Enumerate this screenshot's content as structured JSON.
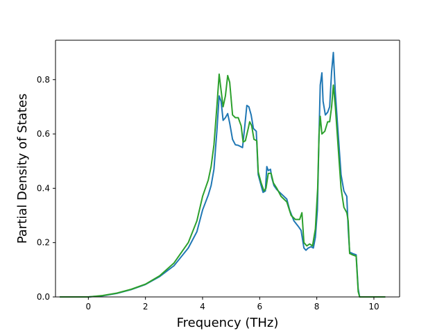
{
  "chart_data": {
    "type": "line",
    "title": "",
    "xlabel": "Frequency (THz)",
    "ylabel": "Partial Density of States",
    "xlim": [
      -1.15,
      10.9
    ],
    "ylim": [
      0.0,
      0.945
    ],
    "xticks": [
      0,
      2,
      4,
      6,
      8,
      10
    ],
    "yticks": [
      0.0,
      0.2,
      0.4,
      0.6,
      0.8
    ],
    "ytick_labels": [
      "0.0",
      "0.2",
      "0.4",
      "0.6",
      "0.8"
    ],
    "grid": false,
    "legend": "none",
    "series": [
      {
        "color": "#1f77b4",
        "points": [
          [
            -1.0,
            0.0
          ],
          [
            0.0,
            0.0
          ],
          [
            0.5,
            0.004
          ],
          [
            1.0,
            0.013
          ],
          [
            1.5,
            0.027
          ],
          [
            2.0,
            0.046
          ],
          [
            2.5,
            0.075
          ],
          [
            3.0,
            0.115
          ],
          [
            3.5,
            0.18
          ],
          [
            3.8,
            0.24
          ],
          [
            4.0,
            0.32
          ],
          [
            4.2,
            0.375
          ],
          [
            4.3,
            0.41
          ],
          [
            4.4,
            0.47
          ],
          [
            4.5,
            0.61
          ],
          [
            4.58,
            0.74
          ],
          [
            4.65,
            0.72
          ],
          [
            4.72,
            0.65
          ],
          [
            4.8,
            0.66
          ],
          [
            4.88,
            0.675
          ],
          [
            4.95,
            0.64
          ],
          [
            5.05,
            0.58
          ],
          [
            5.15,
            0.56
          ],
          [
            5.25,
            0.558
          ],
          [
            5.4,
            0.55
          ],
          [
            5.48,
            0.63
          ],
          [
            5.55,
            0.705
          ],
          [
            5.62,
            0.7
          ],
          [
            5.7,
            0.67
          ],
          [
            5.78,
            0.62
          ],
          [
            5.88,
            0.61
          ],
          [
            5.95,
            0.45
          ],
          [
            6.05,
            0.41
          ],
          [
            6.12,
            0.385
          ],
          [
            6.2,
            0.39
          ],
          [
            6.25,
            0.48
          ],
          [
            6.3,
            0.465
          ],
          [
            6.38,
            0.47
          ],
          [
            6.42,
            0.44
          ],
          [
            6.5,
            0.41
          ],
          [
            6.6,
            0.395
          ],
          [
            6.75,
            0.38
          ],
          [
            6.95,
            0.36
          ],
          [
            7.05,
            0.32
          ],
          [
            7.2,
            0.28
          ],
          [
            7.35,
            0.26
          ],
          [
            7.45,
            0.245
          ],
          [
            7.55,
            0.18
          ],
          [
            7.62,
            0.172
          ],
          [
            7.7,
            0.18
          ],
          [
            7.8,
            0.185
          ],
          [
            7.88,
            0.18
          ],
          [
            7.95,
            0.22
          ],
          [
            8.02,
            0.32
          ],
          [
            8.08,
            0.6
          ],
          [
            8.12,
            0.78
          ],
          [
            8.18,
            0.825
          ],
          [
            8.22,
            0.72
          ],
          [
            8.3,
            0.67
          ],
          [
            8.38,
            0.68
          ],
          [
            8.45,
            0.7
          ],
          [
            8.52,
            0.83
          ],
          [
            8.58,
            0.9
          ],
          [
            8.65,
            0.75
          ],
          [
            8.75,
            0.6
          ],
          [
            8.85,
            0.45
          ],
          [
            8.95,
            0.39
          ],
          [
            9.05,
            0.37
          ],
          [
            9.1,
            0.25
          ],
          [
            9.15,
            0.165
          ],
          [
            9.25,
            0.16
          ],
          [
            9.38,
            0.155
          ],
          [
            9.45,
            0.03
          ],
          [
            9.5,
            0.0
          ],
          [
            10.4,
            0.0
          ]
        ]
      },
      {
        "color": "#2ca02c",
        "points": [
          [
            -1.0,
            0.0
          ],
          [
            0.0,
            0.0
          ],
          [
            0.5,
            0.005
          ],
          [
            1.0,
            0.014
          ],
          [
            1.5,
            0.028
          ],
          [
            2.0,
            0.047
          ],
          [
            2.5,
            0.078
          ],
          [
            3.0,
            0.125
          ],
          [
            3.5,
            0.2
          ],
          [
            3.8,
            0.28
          ],
          [
            4.0,
            0.37
          ],
          [
            4.2,
            0.43
          ],
          [
            4.3,
            0.48
          ],
          [
            4.4,
            0.56
          ],
          [
            4.5,
            0.7
          ],
          [
            4.58,
            0.82
          ],
          [
            4.65,
            0.76
          ],
          [
            4.72,
            0.7
          ],
          [
            4.8,
            0.74
          ],
          [
            4.88,
            0.815
          ],
          [
            4.95,
            0.79
          ],
          [
            5.05,
            0.67
          ],
          [
            5.15,
            0.66
          ],
          [
            5.25,
            0.66
          ],
          [
            5.35,
            0.63
          ],
          [
            5.42,
            0.57
          ],
          [
            5.5,
            0.575
          ],
          [
            5.6,
            0.62
          ],
          [
            5.65,
            0.645
          ],
          [
            5.72,
            0.63
          ],
          [
            5.8,
            0.58
          ],
          [
            5.9,
            0.575
          ],
          [
            5.95,
            0.46
          ],
          [
            6.05,
            0.42
          ],
          [
            6.15,
            0.39
          ],
          [
            6.22,
            0.4
          ],
          [
            6.3,
            0.455
          ],
          [
            6.4,
            0.455
          ],
          [
            6.48,
            0.42
          ],
          [
            6.6,
            0.4
          ],
          [
            6.75,
            0.37
          ],
          [
            6.95,
            0.35
          ],
          [
            7.1,
            0.3
          ],
          [
            7.25,
            0.285
          ],
          [
            7.4,
            0.285
          ],
          [
            7.48,
            0.31
          ],
          [
            7.55,
            0.2
          ],
          [
            7.65,
            0.188
          ],
          [
            7.75,
            0.195
          ],
          [
            7.85,
            0.188
          ],
          [
            7.95,
            0.25
          ],
          [
            8.03,
            0.4
          ],
          [
            8.08,
            0.6
          ],
          [
            8.12,
            0.665
          ],
          [
            8.18,
            0.6
          ],
          [
            8.28,
            0.61
          ],
          [
            8.38,
            0.645
          ],
          [
            8.45,
            0.645
          ],
          [
            8.52,
            0.7
          ],
          [
            8.58,
            0.78
          ],
          [
            8.65,
            0.7
          ],
          [
            8.75,
            0.55
          ],
          [
            8.85,
            0.4
          ],
          [
            8.95,
            0.33
          ],
          [
            9.05,
            0.31
          ],
          [
            9.1,
            0.28
          ],
          [
            9.15,
            0.16
          ],
          [
            9.25,
            0.155
          ],
          [
            9.38,
            0.15
          ],
          [
            9.45,
            0.02
          ],
          [
            9.5,
            0.0
          ],
          [
            10.4,
            0.0
          ]
        ]
      }
    ]
  }
}
